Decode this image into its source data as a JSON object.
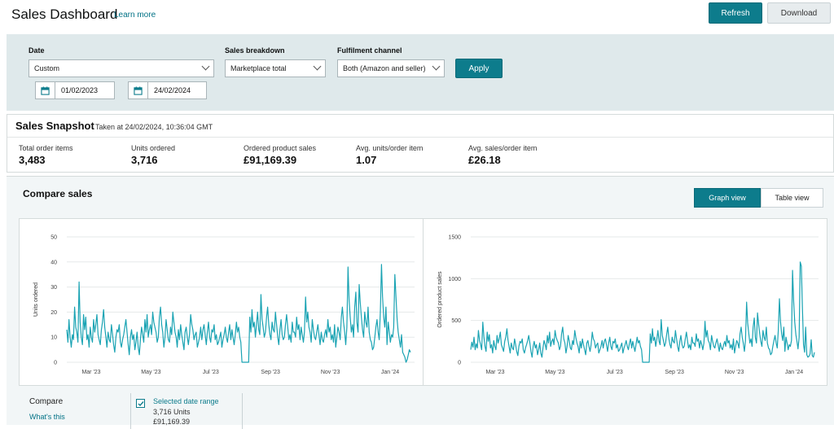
{
  "header": {
    "title": "Sales Dashboard",
    "learn_more": "Learn more",
    "refresh": "Refresh",
    "download": "Download"
  },
  "filters": {
    "date_label": "Date",
    "date_value": "Custom",
    "start_date": "01/02/2023",
    "end_date": "24/02/2024",
    "breakdown_label": "Sales breakdown",
    "breakdown_value": "Marketplace total",
    "channel_label": "Fulfilment channel",
    "channel_value": "Both (Amazon and seller)",
    "apply": "Apply"
  },
  "snapshot": {
    "title": "Sales Snapshot",
    "taken": "Taken at 24/02/2024, 10:36:04 GMT",
    "metrics": [
      {
        "label": "Total order items",
        "value": "3,483"
      },
      {
        "label": "Units ordered",
        "value": "3,716"
      },
      {
        "label": "Ordered product sales",
        "value": "£91,169.39"
      },
      {
        "label": "Avg. units/order item",
        "value": "1.07"
      },
      {
        "label": "Avg. sales/order item",
        "value": "£26.18"
      }
    ]
  },
  "compare": {
    "title": "Compare sales",
    "graph_view": "Graph view",
    "table_view": "Table view",
    "compare_label": "Compare",
    "whats_this": "What's this",
    "legend_name": "Selected date range",
    "legend_units": "3,716 Units",
    "legend_sales": "£91,169.39"
  },
  "colors": {
    "accent": "#0d7c8c",
    "line": "#1aa3b3",
    "panel": "#dfe9eb"
  },
  "chart_data": [
    {
      "type": "line",
      "title": "",
      "ylabel": "Units ordered",
      "xlabel": "",
      "ylim": [
        0,
        50
      ],
      "yticks": [
        0,
        10,
        20,
        30,
        40,
        50
      ],
      "xticks": [
        "Mar '23",
        "May '23",
        "Jul '23",
        "Sep '23",
        "Nov '23",
        "Jan '24"
      ],
      "grid": true,
      "series": [
        {
          "values": [
            13,
            8,
            17,
            10,
            6,
            11,
            9,
            22,
            14,
            12,
            8,
            32,
            16,
            10,
            7,
            19,
            13,
            18,
            9,
            11,
            6,
            14,
            10,
            8,
            17,
            12,
            15,
            19,
            11,
            9,
            7,
            13,
            16,
            21,
            14,
            10,
            6,
            12,
            9,
            8,
            15,
            11,
            7,
            4,
            10,
            13,
            12,
            15,
            8,
            6,
            9,
            11,
            14,
            17,
            12,
            7,
            3,
            10,
            13,
            9,
            11,
            5,
            8,
            12,
            6,
            3,
            9,
            14,
            11,
            8,
            17,
            12,
            19,
            10,
            13,
            15,
            11,
            20,
            16,
            14,
            12,
            8,
            10,
            18,
            22,
            15,
            12,
            6,
            10,
            17,
            13,
            9,
            8,
            14,
            11,
            20,
            16,
            12,
            10,
            6,
            13,
            9,
            15,
            11,
            8,
            5,
            12,
            14,
            10,
            7,
            11,
            19,
            15,
            13,
            9,
            11,
            12,
            6,
            8,
            10,
            14,
            9,
            13,
            15,
            11,
            7,
            12,
            16,
            10,
            8,
            13,
            12,
            15,
            9,
            11,
            7,
            8,
            10,
            12,
            6,
            9,
            11,
            14,
            10,
            8,
            12,
            15,
            9,
            13,
            10,
            7,
            11,
            16,
            12,
            14,
            10,
            8,
            0,
            0,
            0,
            0,
            0,
            0,
            0,
            18,
            12,
            21,
            14,
            16,
            10,
            15,
            20,
            13,
            11,
            27,
            17,
            14,
            10,
            12,
            18,
            22,
            15,
            11,
            9,
            16,
            13,
            12,
            20,
            15,
            10,
            7,
            13,
            17,
            11,
            9,
            10,
            15,
            19,
            14,
            9,
            11,
            8,
            16,
            12,
            12,
            10,
            18,
            13,
            15,
            9,
            14,
            11,
            8,
            12,
            26,
            16,
            20,
            14,
            12,
            8,
            17,
            13,
            10,
            9,
            12,
            15,
            11,
            7,
            12,
            9,
            8,
            11,
            13,
            10,
            17,
            12,
            14,
            9,
            11,
            8,
            15,
            6,
            10,
            14,
            12,
            9,
            18,
            22,
            16,
            12,
            7,
            14,
            38,
            25,
            18,
            12,
            15,
            10,
            22,
            28,
            16,
            12,
            31,
            24,
            18,
            13,
            10,
            20,
            16,
            14,
            22,
            12,
            9,
            8,
            5,
            6,
            10,
            14,
            17,
            12,
            9,
            20,
            39,
            26,
            18,
            14,
            22,
            7,
            16,
            12,
            8,
            11,
            10,
            14,
            35,
            26,
            17,
            12,
            9,
            6,
            11,
            4,
            3,
            2,
            0,
            1,
            3,
            5,
            4
          ]
        }
      ]
    },
    {
      "type": "line",
      "title": "",
      "ylabel": "Ordered product sales",
      "xlabel": "",
      "ylim": [
        0,
        1500
      ],
      "yticks": [
        0,
        500,
        1000,
        1500
      ],
      "xticks": [
        "Mar '23",
        "May '23",
        "Jul '23",
        "Sep '23",
        "Nov '23",
        "Jan '24"
      ],
      "grid": true,
      "series": [
        {
          "values": [
            150,
            240,
            180,
            300,
            150,
            220,
            170,
            380,
            260,
            210,
            150,
            480,
            310,
            190,
            130,
            360,
            250,
            330,
            170,
            210,
            110,
            260,
            190,
            150,
            320,
            230,
            280,
            360,
            210,
            170,
            130,
            250,
            300,
            400,
            270,
            190,
            110,
            230,
            170,
            150,
            280,
            210,
            130,
            80,
            190,
            250,
            230,
            280,
            150,
            110,
            170,
            210,
            260,
            320,
            230,
            130,
            60,
            190,
            250,
            170,
            210,
            90,
            150,
            230,
            110,
            60,
            170,
            260,
            210,
            150,
            320,
            230,
            360,
            190,
            250,
            280,
            210,
            380,
            300,
            260,
            230,
            150,
            190,
            340,
            420,
            280,
            230,
            110,
            190,
            320,
            250,
            170,
            150,
            260,
            210,
            380,
            300,
            230,
            190,
            110,
            250,
            170,
            280,
            210,
            150,
            90,
            230,
            260,
            190,
            130,
            210,
            360,
            280,
            250,
            170,
            210,
            230,
            110,
            150,
            190,
            260,
            170,
            250,
            280,
            210,
            130,
            230,
            300,
            190,
            150,
            250,
            230,
            280,
            170,
            210,
            130,
            150,
            190,
            230,
            110,
            170,
            210,
            260,
            190,
            150,
            230,
            280,
            170,
            250,
            190,
            130,
            210,
            300,
            230,
            260,
            190,
            150,
            0,
            0,
            0,
            0,
            0,
            0,
            0,
            340,
            230,
            400,
            260,
            300,
            190,
            280,
            380,
            250,
            210,
            510,
            320,
            260,
            190,
            230,
            340,
            420,
            280,
            210,
            170,
            300,
            250,
            230,
            380,
            280,
            190,
            130,
            250,
            320,
            210,
            170,
            190,
            280,
            360,
            260,
            170,
            210,
            150,
            300,
            230,
            230,
            190,
            340,
            250,
            280,
            170,
            260,
            210,
            150,
            230,
            490,
            300,
            380,
            260,
            230,
            150,
            320,
            250,
            190,
            170,
            230,
            280,
            210,
            130,
            230,
            170,
            150,
            210,
            250,
            190,
            320,
            230,
            260,
            170,
            210,
            150,
            280,
            110,
            190,
            260,
            230,
            170,
            340,
            420,
            300,
            230,
            130,
            260,
            720,
            470,
            340,
            230,
            280,
            190,
            420,
            530,
            300,
            230,
            590,
            450,
            340,
            250,
            190,
            380,
            300,
            260,
            420,
            230,
            170,
            150,
            90,
            110,
            190,
            260,
            320,
            230,
            170,
            380,
            760,
            490,
            340,
            260,
            420,
            130,
            300,
            230,
            150,
            210,
            190,
            260,
            1100,
            720,
            480,
            330,
            250,
            160,
            300,
            1200,
            1150,
            660,
            210,
            120,
            420,
            90,
            60,
            70,
            100,
            270,
            80,
            60,
            120
          ]
        }
      ]
    }
  ]
}
